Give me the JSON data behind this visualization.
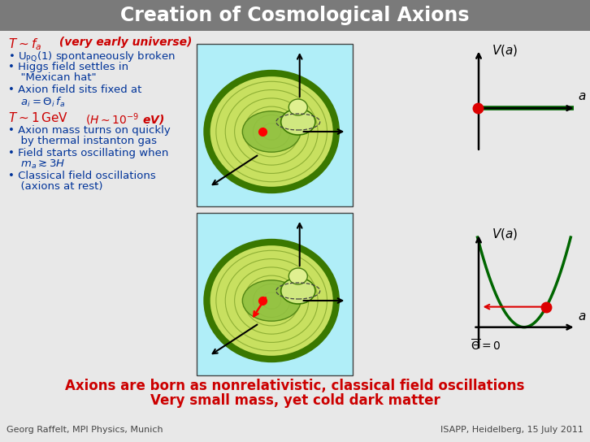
{
  "title": "Creation of Cosmological Axions",
  "title_bg_color": "#7a7a7a",
  "title_text_color": "#ffffff",
  "slide_bg_color": "#e8e8e8",
  "top_label_color": "#cc0000",
  "bot_label_color": "#cc0000",
  "footer_left": "Georg Raffelt, MPI Physics, Munich",
  "footer_right": "ISAPP, Heidelberg, 15 July 2011",
  "footer_color": "#444444",
  "summary_line1": "Axions are born as nonrelativistic, classical field oscillations",
  "summary_line2": "Very small mass, yet cold dark matter",
  "summary_color": "#cc0000",
  "bullet_color": "#003399",
  "hat_bg": "#b0eef8",
  "hat_outer_fill": "#b8e060",
  "hat_outer_edge": "#2a6000",
  "hat_rim_fill": "#5a9e10",
  "hat_bump_fill": "#c8ee80",
  "Va_bg": "#e8e8e8",
  "Va_line_color": "#006600",
  "Va_dot_color": "#dd0000",
  "Va_arrow_color": "#dd0000"
}
